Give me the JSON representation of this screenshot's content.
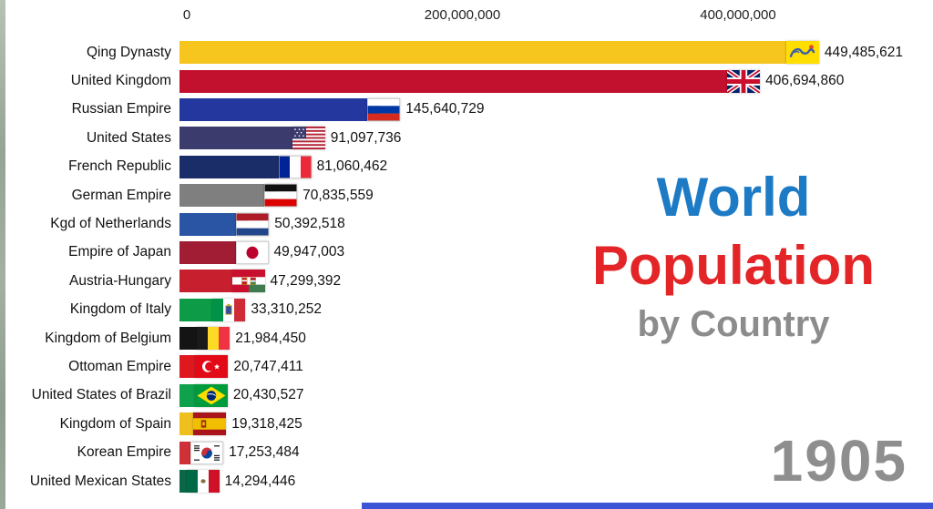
{
  "title": {
    "line1": "World",
    "line2": "Population",
    "line3": "by Country"
  },
  "colors": {
    "title_blue": "#1d7ac4",
    "title_red": "#e42528",
    "subtitle_gray": "#8c8c8c",
    "year_gray": "#8e8e8e",
    "background": "#ffffff"
  },
  "chart_data": {
    "type": "bar",
    "orientation": "horizontal",
    "title": "World Population by Country",
    "year": "1905",
    "x_axis": {
      "ticks": [
        {
          "label": "0",
          "value": 0
        },
        {
          "label": "200,000,000",
          "value": 200000000
        },
        {
          "label": "400,000,000",
          "value": 400000000
        }
      ],
      "max_value": 449485621,
      "grid": false
    },
    "bars": [
      {
        "label": "Qing Dynasty",
        "value": 449485621,
        "value_label": "449,485,621",
        "color": "#f6c51e",
        "flag": "qing-dynasty"
      },
      {
        "label": "United Kingdom",
        "value": 406694860,
        "value_label": "406,694,860",
        "color": "#c2112e",
        "flag": "united-kingdom"
      },
      {
        "label": "Russian Empire",
        "value": 145640729,
        "value_label": "145,640,729",
        "color": "#23379e",
        "flag": "russian-empire"
      },
      {
        "label": "United States",
        "value": 91097736,
        "value_label": "91,097,736",
        "color": "#3c3b6e",
        "flag": "united-states"
      },
      {
        "label": "French Republic",
        "value": 81060462,
        "value_label": "81,060,462",
        "color": "#1b2d69",
        "flag": "french-republic"
      },
      {
        "label": "German Empire",
        "value": 70835559,
        "value_label": "70,835,559",
        "color": "#7f7f7f",
        "flag": "german-empire"
      },
      {
        "label": "Kgd of Netherlands",
        "value": 50392518,
        "value_label": "50,392,518",
        "color": "#2a55a5",
        "flag": "netherlands"
      },
      {
        "label": "Empire of Japan",
        "value": 49947003,
        "value_label": "49,947,003",
        "color": "#a01d33",
        "flag": "japan"
      },
      {
        "label": "Austria-Hungary",
        "value": 47299392,
        "value_label": "47,299,392",
        "color": "#c81f2f",
        "flag": "austria-hungary"
      },
      {
        "label": "Kingdom of Italy",
        "value": 33310252,
        "value_label": "33,310,252",
        "color": "#0e9b47",
        "flag": "italy"
      },
      {
        "label": "Kingdom of Belgium",
        "value": 21984450,
        "value_label": "21,984,450",
        "color": "#141414",
        "flag": "belgium"
      },
      {
        "label": "Ottoman Empire",
        "value": 20747411,
        "value_label": "20,747,411",
        "color": "#df1820",
        "flag": "ottoman-empire"
      },
      {
        "label": "United States of Brazil",
        "value": 20430527,
        "value_label": "20,430,527",
        "color": "#0fa14c",
        "flag": "brazil"
      },
      {
        "label": "Kingdom of Spain",
        "value": 19318425,
        "value_label": "19,318,425",
        "color": "#efbf1e",
        "flag": "spain"
      },
      {
        "label": "Korean Empire",
        "value": 17253484,
        "value_label": "17,253,484",
        "color": "#d03038",
        "flag": "korean-empire"
      },
      {
        "label": "United Mexican States",
        "value": 14294446,
        "value_label": "14,294,446",
        "color": "#0a6847",
        "flag": "mexico"
      }
    ]
  }
}
